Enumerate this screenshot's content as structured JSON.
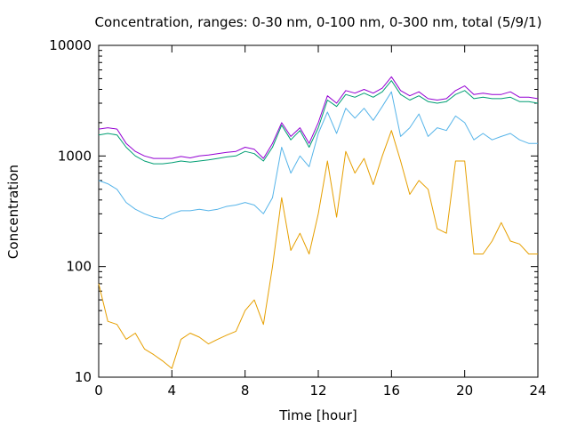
{
  "chart_data": {
    "type": "line",
    "title": "Concentration, ranges: 0-30 nm, 0-100 nm, 0-300 nm, total (5/9/1)",
    "xlabel": "Time [hour]",
    "ylabel": "Concentration",
    "xlim": [
      0,
      24
    ],
    "ylim": [
      10,
      10000
    ],
    "y_scale": "log",
    "grid": false,
    "legend": "none",
    "x_ticks": [
      0,
      4,
      8,
      12,
      16,
      20,
      24
    ],
    "x_tick_labels": [
      "0",
      "4",
      "8",
      "12",
      "16",
      "20",
      "24"
    ],
    "y_ticks": [
      10,
      100,
      1000,
      10000
    ],
    "y_tick_labels": [
      "10",
      "100",
      "1000",
      "10000"
    ],
    "x": [
      0,
      0.5,
      1,
      1.5,
      2,
      2.5,
      3,
      3.5,
      4,
      4.5,
      5,
      5.5,
      6,
      6.5,
      7,
      7.5,
      8,
      8.5,
      9,
      9.5,
      10,
      10.5,
      11,
      11.5,
      12,
      12.5,
      13,
      13.5,
      14,
      14.5,
      15,
      15.5,
      16,
      16.5,
      17,
      17.5,
      18,
      18.5,
      19,
      19.5,
      20,
      20.5,
      21,
      21.5,
      22,
      22.5,
      23,
      23.5,
      24
    ],
    "series": [
      {
        "color": "#e69f00",
        "values": [
          70,
          32,
          30,
          22,
          25,
          18,
          16,
          14,
          12,
          22,
          25,
          23,
          20,
          22,
          24,
          26,
          40,
          50,
          30,
          100,
          420,
          140,
          200,
          130,
          300,
          900,
          280,
          1100,
          700,
          950,
          550,
          1000,
          1700,
          900,
          450,
          600,
          500,
          220,
          200,
          900,
          900,
          130,
          130,
          170,
          250,
          170,
          160,
          130,
          130
        ]
      },
      {
        "color": "#56b4e9",
        "values": [
          600,
          560,
          500,
          380,
          330,
          300,
          280,
          270,
          300,
          320,
          320,
          330,
          320,
          330,
          350,
          360,
          380,
          360,
          300,
          420,
          1200,
          700,
          1000,
          800,
          1600,
          2500,
          1600,
          2700,
          2200,
          2700,
          2100,
          2800,
          3800,
          1500,
          1800,
          2400,
          1500,
          1800,
          1700,
          2300,
          2000,
          1400,
          1600,
          1400,
          1500,
          1600,
          1400,
          1300,
          1300
        ]
      },
      {
        "color": "#009e73",
        "values": [
          1550,
          1600,
          1550,
          1200,
          1000,
          900,
          850,
          850,
          870,
          900,
          880,
          900,
          920,
          950,
          980,
          1000,
          1100,
          1050,
          900,
          1200,
          1900,
          1400,
          1700,
          1200,
          1800,
          3200,
          2800,
          3600,
          3400,
          3700,
          3400,
          3800,
          4800,
          3600,
          3200,
          3500,
          3100,
          3000,
          3100,
          3600,
          3900,
          3300,
          3400,
          3300,
          3300,
          3400,
          3100,
          3100,
          3000
        ]
      },
      {
        "color": "#9400d3",
        "values": [
          1750,
          1800,
          1750,
          1300,
          1100,
          1000,
          950,
          950,
          950,
          990,
          960,
          1000,
          1020,
          1050,
          1080,
          1100,
          1200,
          1150,
          950,
          1300,
          2000,
          1500,
          1800,
          1300,
          2000,
          3500,
          3000,
          3900,
          3700,
          4000,
          3700,
          4100,
          5200,
          3900,
          3500,
          3800,
          3300,
          3200,
          3300,
          3900,
          4300,
          3600,
          3700,
          3600,
          3600,
          3800,
          3400,
          3400,
          3300
        ]
      }
    ]
  }
}
